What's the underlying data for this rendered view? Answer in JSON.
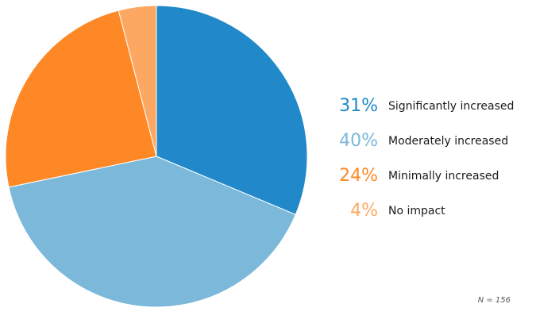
{
  "chart_data": {
    "type": "pie",
    "title": "",
    "slices": [
      {
        "label": "Significantly increased",
        "value": 31,
        "display": "31%",
        "color": "#2189c9"
      },
      {
        "label": "Moderately increased",
        "value": 40,
        "display": "40%",
        "color": "#7bb8da"
      },
      {
        "label": "Minimally increased",
        "value": 24,
        "display": "24%",
        "color": "#fd8825"
      },
      {
        "label": "No impact",
        "value": 4,
        "display": "4%",
        "color": "#fca863"
      }
    ],
    "legend_position": "right",
    "note": "N = 156"
  }
}
